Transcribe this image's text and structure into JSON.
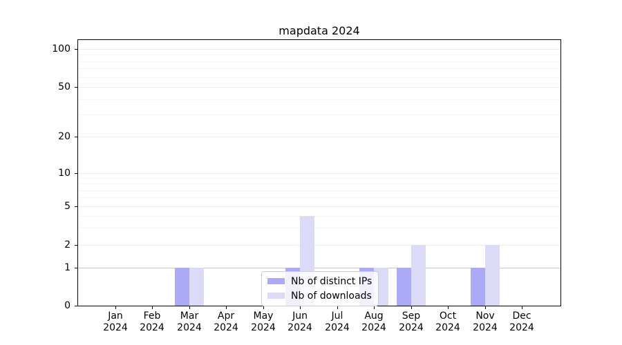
{
  "figure": {
    "background": "#ffffff",
    "axes_color": "#000000",
    "text_color": "#000000"
  },
  "chart_data": {
    "type": "bar",
    "title": "mapdata 2024",
    "categories": [
      {
        "month": "Jan",
        "year": "2024"
      },
      {
        "month": "Feb",
        "year": "2024"
      },
      {
        "month": "Mar",
        "year": "2024"
      },
      {
        "month": "Apr",
        "year": "2024"
      },
      {
        "month": "May",
        "year": "2024"
      },
      {
        "month": "Jun",
        "year": "2024"
      },
      {
        "month": "Jul",
        "year": "2024"
      },
      {
        "month": "Aug",
        "year": "2024"
      },
      {
        "month": "Sep",
        "year": "2024"
      },
      {
        "month": "Oct",
        "year": "2024"
      },
      {
        "month": "Nov",
        "year": "2024"
      },
      {
        "month": "Dec",
        "year": "2024"
      }
    ],
    "series": [
      {
        "key": "distinct-ips",
        "name": "Nb of distinct IPs",
        "color": "#aaaaf6",
        "values": [
          0,
          0,
          1,
          0,
          0,
          1,
          0,
          1,
          1,
          0,
          1,
          0
        ]
      },
      {
        "key": "downloads",
        "name": "Nb of downloads",
        "color": "#dbdbf7",
        "values": [
          0,
          0,
          1,
          0,
          0,
          4,
          0,
          1,
          2,
          0,
          2,
          0
        ]
      }
    ],
    "yaxis": {
      "scale": "symlog",
      "ticks": [
        0,
        1,
        2,
        5,
        10,
        20,
        50,
        100
      ],
      "minor_gridlines": [
        3,
        4,
        6,
        7,
        8,
        9,
        30,
        40,
        60,
        70,
        80,
        90
      ],
      "ylim": [
        0,
        120
      ],
      "major_grid_color": "#e9e9e9",
      "minor_grid_color": "#f4f4f4",
      "unit_gridline_color": "#c4c4c4"
    },
    "legend": {
      "position": "lower center",
      "background": "rgba(255,255,255,0.82)",
      "border_color": "#cccccc"
    },
    "grid": true
  }
}
